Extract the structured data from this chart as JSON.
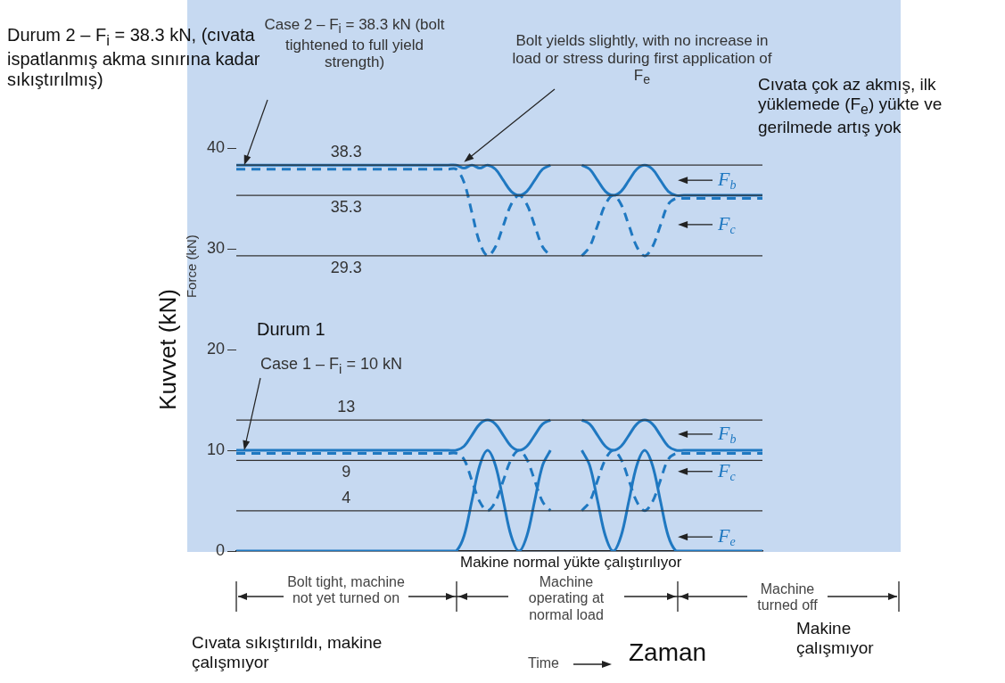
{
  "chart_data": {
    "type": "line",
    "ylabel": "Kuvvet (kN)",
    "xlabel": "Zaman",
    "categories": [
      null,
      null,
      null,
      null,
      null,
      null,
      null,
      null,
      null,
      null,
      null,
      null,
      null,
      null,
      null,
      null,
      null,
      null,
      null,
      null,
      null,
      null,
      null,
      null,
      null,
      null,
      null,
      null,
      null,
      null,
      null,
      null,
      null,
      null,
      null,
      null,
      null,
      null,
      null,
      null,
      null,
      null,
      null,
      null,
      null,
      null,
      null,
      null,
      null,
      null,
      null,
      null,
      null,
      null,
      null,
      null,
      null,
      null,
      null,
      null,
      null,
      null,
      null,
      null,
      null,
      null,
      null,
      null
    ],
    "ylim": [
      0,
      40
    ],
    "yticks": [
      0,
      10,
      20,
      30,
      40
    ],
    "tick_labels": "y",
    "marker": "none",
    "series": [
      {
        "color": "#1f78c1",
        "line_style": "solid",
        "values": [
          10,
          10,
          10,
          10,
          10,
          10,
          10,
          10,
          10,
          10,
          10,
          10,
          10,
          10,
          10,
          10,
          10,
          10,
          10,
          10,
          10,
          10,
          10,
          10,
          10,
          10,
          10,
          10,
          10,
          10.4,
          11.5,
          12.6,
          13,
          12.6,
          11.5,
          10.4,
          10,
          10.4,
          11.5,
          12.6,
          13,
          null,
          null,
          null,
          null,
          null,
          null,
          null,
          null,
          null,
          null,
          null,
          null,
          null,
          null,
          null,
          null,
          null,
          null,
          null,
          null,
          null,
          null,
          null,
          null,
          null,
          null,
          null
        ]
      },
      {
        "color": "#1f78c1",
        "line_style": "dashed",
        "values": [
          9.7,
          9.7,
          9.7,
          9.7,
          9.7,
          9.7,
          9.7,
          9.7,
          9.7,
          9.7,
          9.7,
          9.7,
          9.7,
          9.7,
          9.7,
          9.7,
          9.7,
          9.7,
          9.7,
          9.7,
          9.7,
          9.7,
          9.7,
          9.7,
          9.7,
          9.7,
          9.7,
          9.7,
          9.7,
          9.1,
          7,
          4.9,
          4,
          4.9,
          7,
          9.1,
          10,
          9.1,
          7,
          4.9,
          4,
          null,
          null,
          null,
          null,
          null,
          null,
          null,
          null,
          null,
          null,
          null,
          null,
          null,
          null,
          null,
          null,
          null,
          null,
          null,
          null,
          null,
          null,
          null,
          null,
          null,
          null,
          null
        ]
      },
      {
        "color": "#1f78c1",
        "line_style": "solid",
        "values": [
          0,
          0,
          0,
          0,
          0,
          0,
          0,
          0,
          0,
          0,
          0,
          0,
          0,
          0,
          0,
          0,
          0,
          0,
          0,
          0,
          0,
          0,
          0,
          0,
          0,
          0,
          0,
          0,
          0,
          1.5,
          5,
          8.5,
          10,
          8.5,
          5,
          1.5,
          0,
          1.5,
          5,
          8.5,
          10,
          null,
          null,
          null,
          null,
          null,
          null,
          null,
          null,
          null,
          null,
          null,
          null,
          null,
          null,
          null,
          null,
          null,
          null,
          null,
          null,
          null,
          null,
          null,
          null,
          null,
          null,
          null
        ]
      },
      {
        "color": "#1f78c1",
        "line_style": "solid",
        "values": [
          38.3,
          38.3,
          38.3,
          38.3,
          38.3,
          38.3,
          38.3,
          38.3,
          38.3,
          38.3,
          38.3,
          38.3,
          38.3,
          38.3,
          38.3,
          38.3,
          38.3,
          38.3,
          38.3,
          38.3,
          38.3,
          38.3,
          38.3,
          38.3,
          38.3,
          38.3,
          38.3,
          38.3,
          38.3,
          38,
          38.3,
          38,
          38.3,
          37.9,
          36.8,
          35.7,
          35.3,
          35.7,
          36.8,
          37.9,
          38.3,
          null,
          null,
          null,
          null,
          null,
          null,
          null,
          null,
          null,
          null,
          null,
          null,
          null,
          null,
          null,
          null,
          null,
          null,
          null,
          null,
          null,
          null,
          null,
          null,
          null,
          null,
          null
        ]
      },
      {
        "color": "#1f78c1",
        "line_style": "dashed",
        "values": [
          37.9,
          37.9,
          37.9,
          37.9,
          37.9,
          37.9,
          37.9,
          37.9,
          37.9,
          37.9,
          37.9,
          37.9,
          37.9,
          37.9,
          37.9,
          37.9,
          37.9,
          37.9,
          37.9,
          37.9,
          37.9,
          37.9,
          37.9,
          37.9,
          37.9,
          37.9,
          37.9,
          37.9,
          37.9,
          36.6,
          33.6,
          30.6,
          29.3,
          30.2,
          32.3,
          34.4,
          35.3,
          34.4,
          32.3,
          30.2,
          29.3,
          null,
          null,
          null,
          null,
          null,
          null,
          null,
          null,
          null,
          null,
          null,
          null,
          null,
          null,
          null,
          null,
          null,
          null,
          null,
          null,
          null,
          null,
          null,
          null,
          null,
          null,
          null
        ]
      },
      {
        "name": "F$_{b}$",
        "color": "#1f78c1",
        "line_style": "solid",
        "values": [
          null,
          null,
          null,
          null,
          null,
          null,
          null,
          null,
          null,
          null,
          null,
          null,
          null,
          null,
          null,
          null,
          null,
          null,
          null,
          null,
          null,
          null,
          null,
          null,
          null,
          null,
          null,
          null,
          null,
          null,
          null,
          null,
          null,
          null,
          null,
          null,
          null,
          null,
          null,
          null,
          null,
          null,
          null,
          null,
          13,
          12.6,
          11.5,
          10.4,
          10,
          10.4,
          11.5,
          12.6,
          13,
          12.6,
          11.5,
          10.4,
          10,
          10,
          10,
          10,
          10,
          10,
          10,
          10,
          10,
          10,
          10,
          10
        ]
      },
      {
        "name": "F$_{c}$",
        "color": "#1f78c1",
        "line_style": "dashed",
        "values": [
          null,
          null,
          null,
          null,
          null,
          null,
          null,
          null,
          null,
          null,
          null,
          null,
          null,
          null,
          null,
          null,
          null,
          null,
          null,
          null,
          null,
          null,
          null,
          null,
          null,
          null,
          null,
          null,
          null,
          null,
          null,
          null,
          null,
          null,
          null,
          null,
          null,
          null,
          null,
          null,
          null,
          null,
          null,
          null,
          4,
          4.9,
          7,
          9.1,
          10,
          9.1,
          7,
          4.9,
          4,
          4.9,
          7,
          9.1,
          9.7,
          9.7,
          9.7,
          9.7,
          9.7,
          9.7,
          9.7,
          9.7,
          9.7,
          9.7,
          9.7,
          9.7
        ]
      },
      {
        "name": "F$_{e}$",
        "color": "#1f78c1",
        "line_style": "solid",
        "values": [
          null,
          null,
          null,
          null,
          null,
          null,
          null,
          null,
          null,
          null,
          null,
          null,
          null,
          null,
          null,
          null,
          null,
          null,
          null,
          null,
          null,
          null,
          null,
          null,
          null,
          null,
          null,
          null,
          null,
          null,
          null,
          null,
          null,
          null,
          null,
          null,
          null,
          null,
          null,
          null,
          null,
          null,
          null,
          null,
          10,
          8.5,
          5,
          1.5,
          0,
          1.5,
          5,
          8.5,
          10,
          8.5,
          5,
          1.5,
          0,
          0,
          0,
          0,
          0,
          0,
          0,
          0,
          0,
          0,
          0,
          0
        ]
      },
      {
        "name": "F$_{b}$",
        "color": "#1f78c1",
        "line_style": "solid",
        "values": [
          null,
          null,
          null,
          null,
          null,
          null,
          null,
          null,
          null,
          null,
          null,
          null,
          null,
          null,
          null,
          null,
          null,
          null,
          null,
          null,
          null,
          null,
          null,
          null,
          null,
          null,
          null,
          null,
          null,
          null,
          null,
          null,
          null,
          null,
          null,
          null,
          null,
          null,
          null,
          null,
          null,
          null,
          null,
          null,
          38.3,
          37.9,
          36.8,
          35.7,
          35.3,
          35.7,
          36.8,
          37.9,
          38.3,
          37.9,
          36.8,
          35.7,
          35.3,
          35.3,
          35.3,
          35.3,
          35.3,
          35.3,
          35.3,
          35.3,
          35.3,
          35.3,
          35.3,
          35.3
        ]
      },
      {
        "name": "F$_{c}$",
        "color": "#1f78c1",
        "line_style": "dashed",
        "values": [
          null,
          null,
          null,
          null,
          null,
          null,
          null,
          null,
          null,
          null,
          null,
          null,
          null,
          null,
          null,
          null,
          null,
          null,
          null,
          null,
          null,
          null,
          null,
          null,
          null,
          null,
          null,
          null,
          null,
          null,
          null,
          null,
          null,
          null,
          null,
          null,
          null,
          null,
          null,
          null,
          null,
          null,
          null,
          null,
          29.3,
          30.2,
          32.3,
          34.4,
          35.3,
          34.4,
          32.3,
          30.2,
          29.3,
          30.2,
          32.3,
          34.4,
          35,
          35,
          35,
          35,
          35,
          35,
          35,
          35,
          35,
          35,
          35,
          35
        ]
      }
    ],
    "ref_lines": [
      {
        "axis": "y",
        "value": 38.3,
        "label": "38.3",
        "color": "#333333"
      },
      {
        "axis": "y",
        "value": 35.3,
        "label": "35.3",
        "color": "#333333"
      },
      {
        "axis": "y",
        "value": 29.3,
        "label": "29.3",
        "color": "#333333"
      },
      {
        "axis": "y",
        "value": 13,
        "label": "13",
        "color": "#333333"
      },
      {
        "axis": "y",
        "value": 9,
        "label": "9",
        "color": "#333333"
      },
      {
        "axis": "y",
        "value": 4,
        "label": "4",
        "color": "#333333"
      }
    ],
    "annotations": [
      "Durum 2 – F$_{i}$ = 38.3 kN, (cıvata ispatlanmış akma sınırına kadar sıkıştırılmış)",
      "Case 2 – F$_{i}$ = 38.3 kN (bolt tightened to full yield strength)",
      "Bolt yields slightly, with no increase in load or stress during first application of F$_{e}$",
      "Cıvata çok az akmış, ilk yüklemede (F$_{e}$) yükte ve gerilmede artış yok",
      "Durum 1",
      "Case 1 – F$_{i}$ = 10 kN",
      "Makine normal yükte çalıştırılıyor",
      "Bolt tight, machine not yet turned on",
      "Machine operating at normal load",
      "Machine turned off",
      "Cıvata sıkıştırıldı, makine çalışmıyor",
      "Makine çalışmıyor",
      "Time",
      "Force (kN)"
    ]
  }
}
